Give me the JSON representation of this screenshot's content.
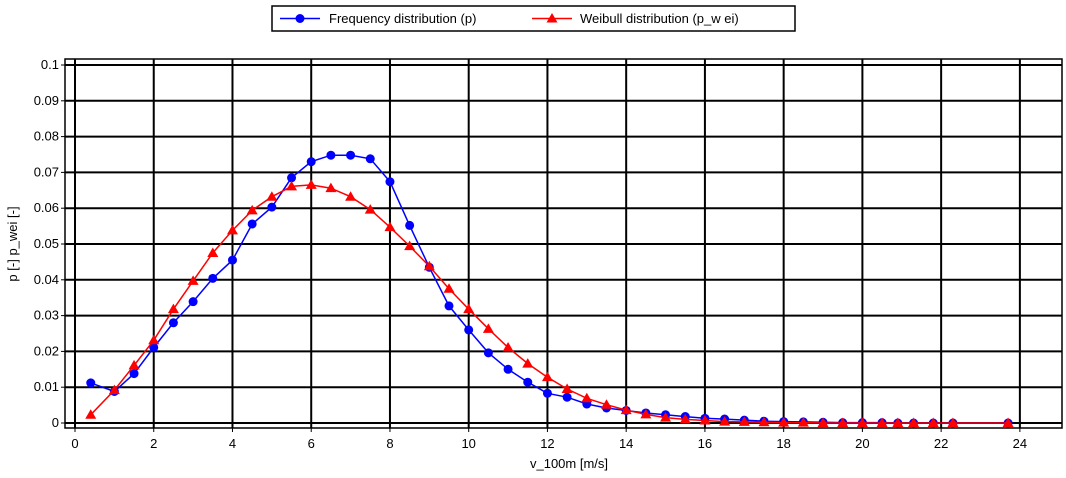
{
  "chart_data": {
    "type": "line",
    "xlabel": "v_100m [m/s]",
    "ylabel": "p [-]  p_wei [-]",
    "xlim": [
      0,
      25
    ],
    "ylim": [
      -0.001,
      0.101
    ],
    "xticks": [
      0,
      2,
      4,
      6,
      8,
      10,
      12,
      14,
      16,
      18,
      20,
      22,
      24
    ],
    "yticks": [
      0,
      0.01,
      0.02,
      0.03,
      0.04,
      0.05,
      0.06,
      0.07,
      0.08,
      0.09,
      0.1
    ],
    "ytick_labels": [
      "0",
      "0.01",
      "0.02",
      "0.03",
      "0.04",
      "0.05",
      "0.06",
      "0.07",
      "0.08",
      "0.09",
      "0.1"
    ],
    "grid": true,
    "legend_position": "top-center",
    "series": [
      {
        "name": "Frequency distribution (p)",
        "color": "#0000ff",
        "marker": "circle",
        "x": [
          0.4,
          1.0,
          1.5,
          2.0,
          2.5,
          3.0,
          3.5,
          4.0,
          4.5,
          5.0,
          5.5,
          6.0,
          6.5,
          7.0,
          7.5,
          8.0,
          8.5,
          9.0,
          9.5,
          10.0,
          10.5,
          11.0,
          11.5,
          12.0,
          12.5,
          13.0,
          13.5,
          14.0,
          14.5,
          15.0,
          15.5,
          16.0,
          16.5,
          17.0,
          17.5,
          18.0,
          18.5,
          19.0,
          19.5,
          20.0,
          20.5,
          20.9,
          21.3,
          21.8,
          22.3,
          23.7
        ],
        "y": [
          0.0112,
          0.0088,
          0.0138,
          0.0211,
          0.028,
          0.0339,
          0.0404,
          0.0455,
          0.0556,
          0.0603,
          0.0685,
          0.073,
          0.0748,
          0.0748,
          0.0738,
          0.0674,
          0.0552,
          0.0435,
          0.0327,
          0.026,
          0.0196,
          0.015,
          0.0114,
          0.0083,
          0.0072,
          0.0053,
          0.0042,
          0.0035,
          0.0028,
          0.0023,
          0.0018,
          0.0013,
          0.0011,
          0.0008,
          0.0005,
          0.0004,
          0.0003,
          0.0002,
          0.0001,
          0.0001,
          0.0001,
          0.0,
          0.0,
          0.0,
          0.0,
          0.0
        ]
      },
      {
        "name": "Weibull distribution (p_w ei)",
        "color": "#ff0000",
        "marker": "triangle",
        "x": [
          0.4,
          1.0,
          1.5,
          2.0,
          2.5,
          3.0,
          3.5,
          4.0,
          4.5,
          5.0,
          5.5,
          6.0,
          6.5,
          7.0,
          7.5,
          8.0,
          8.5,
          9.0,
          9.5,
          10.0,
          10.5,
          11.0,
          11.5,
          12.0,
          12.5,
          13.0,
          13.5,
          14.0,
          14.5,
          15.0,
          15.5,
          16.0,
          16.5,
          17.0,
          17.5,
          18.0,
          18.5,
          19.0,
          19.5,
          20.0,
          20.5,
          20.9,
          21.3,
          21.8,
          22.3,
          23.7
        ],
        "y": [
          0.0023,
          0.0092,
          0.0161,
          0.0231,
          0.0318,
          0.0397,
          0.0475,
          0.0538,
          0.0594,
          0.0632,
          0.0661,
          0.0665,
          0.0656,
          0.0632,
          0.0596,
          0.0547,
          0.0494,
          0.0438,
          0.0375,
          0.0318,
          0.0263,
          0.0211,
          0.0166,
          0.0128,
          0.0095,
          0.0069,
          0.0051,
          0.0036,
          0.0024,
          0.0015,
          0.001,
          0.0007,
          0.0004,
          0.0003,
          0.0002,
          0.0001,
          0.0001,
          0.0,
          0.0,
          0.0,
          0.0,
          0.0,
          0.0,
          0.0,
          0.0,
          0.0
        ]
      }
    ]
  }
}
